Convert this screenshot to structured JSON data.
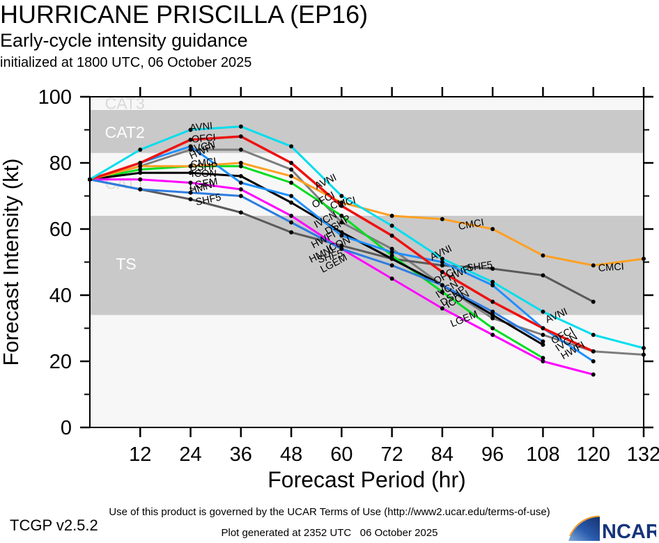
{
  "header": {
    "title": "HURRICANE PRISCILLA (EP16)",
    "subtitle": "Early-cycle intensity guidance",
    "init": "initialized at 1800 UTC, 06 October 2025"
  },
  "footer": {
    "version": "TCGP v2.5.2",
    "terms": "Use of this product is governed by the UCAR Terms of Use (http://www2.ucar.edu/terms-of-use)",
    "generated": "Plot generated at 2352 UTC   06 October 2025",
    "logo_text": "NCAR",
    "logo_navy": "#16357c",
    "logo_orange": "#f59a23"
  },
  "chart_data": {
    "type": "line",
    "title": "HURRICANE PRISCILLA (EP16)",
    "xlabel": "Forecast Period (hr)",
    "ylabel": "Forecast Intensity (kt)",
    "xlim": [
      0,
      132
    ],
    "ylim": [
      0,
      100
    ],
    "x_major_ticks": [
      12,
      24,
      36,
      48,
      60,
      72,
      84,
      96,
      108,
      120,
      132
    ],
    "y_major_ticks": [
      0,
      20,
      40,
      60,
      80,
      100
    ],
    "y_minor_ticks": [
      10,
      30,
      50,
      70,
      90
    ],
    "plot_bg": "#f7f7f7",
    "band_gray": "#c9c9c9",
    "x": [
      0,
      12,
      24,
      36,
      48,
      60,
      72,
      84,
      96,
      108,
      120,
      132
    ],
    "bands": [
      {
        "label": "TS",
        "from": 34,
        "to": 64,
        "fill": "#c9c9c9",
        "label_color": "#ffffff",
        "label_hr": 6.2,
        "label_kt": 49.5
      },
      {
        "label": "CAT1",
        "from": 64,
        "to": 83,
        "fill": "#f7f7f7",
        "label_color": "#dcdcdc",
        "label_hr": 3.6,
        "label_kt": 73.8
      },
      {
        "label": "CAT2",
        "from": 83,
        "to": 96,
        "fill": "#c9c9c9",
        "label_color": "#ffffff",
        "label_hr": 3.6,
        "label_kt": 89.3
      },
      {
        "label": "CAT3",
        "from": 96,
        "to": 113,
        "fill": "#f7f7f7",
        "label_color": "#d8d8d8",
        "label_hr": 3.6,
        "label_kt": 98.0
      }
    ],
    "series": [
      {
        "name": "IVCN",
        "color": "#7d7d7d",
        "width": 3,
        "values": [
          75,
          79,
          84,
          84,
          78,
          62,
          54,
          43,
          33,
          28,
          23,
          22
        ]
      },
      {
        "name": "SHF5",
        "color": "#5a5a5a",
        "width": 3,
        "values": [
          75,
          72,
          69,
          65,
          59,
          55,
          51,
          49,
          48,
          46,
          38,
          null
        ]
      },
      {
        "name": "DSHP",
        "color": "#00dd22",
        "width": 3,
        "values": [
          75,
          78,
          79,
          79,
          74,
          64,
          52,
          41,
          30,
          21,
          null,
          null
        ]
      },
      {
        "name": "ICON",
        "color": "#000000",
        "width": 3,
        "values": [
          75,
          77,
          77,
          76,
          68,
          59,
          51,
          43,
          34,
          25,
          null,
          null
        ]
      },
      {
        "name": "LGEM",
        "color": "#ff00ff",
        "width": 3,
        "values": [
          75,
          75,
          74,
          72,
          64,
          54,
          45,
          36,
          28,
          20,
          16,
          null
        ]
      },
      {
        "name": "HMNI",
        "color": "#2e7ce0",
        "width": 3,
        "values": [
          75,
          72,
          71,
          70,
          62,
          54,
          49,
          43,
          35,
          26,
          null,
          null
        ]
      },
      {
        "name": "HWFI",
        "color": "#1e90ff",
        "width": 3,
        "values": [
          75,
          80,
          85,
          74,
          70,
          58,
          53,
          50,
          43,
          30,
          20,
          null
        ]
      },
      {
        "name": "CMCI",
        "color": "#ffa022",
        "width": 3,
        "values": [
          75,
          79,
          79,
          80,
          76,
          68,
          64,
          63,
          60,
          52,
          49,
          51
        ]
      },
      {
        "name": "OFCI",
        "color": "#ee1111",
        "width": 3.5,
        "values": [
          75,
          80,
          87,
          88,
          80,
          67,
          58,
          47,
          38,
          30,
          23,
          null
        ]
      },
      {
        "name": "AVNI",
        "color": "#00ddee",
        "width": 3,
        "values": [
          75,
          84,
          90,
          91,
          85,
          70,
          61,
          51,
          44,
          35,
          28,
          24
        ]
      }
    ],
    "annotations": [
      {
        "text": "AVNI",
        "hr": 26.6,
        "kt": 91.0,
        "rot": -6
      },
      {
        "text": "OFCI",
        "hr": 27.2,
        "kt": 87.5,
        "rot": -5
      },
      {
        "text": "IVCN",
        "hr": 27.2,
        "kt": 85.0,
        "rot": -12
      },
      {
        "text": "HWFI",
        "hr": 27.0,
        "kt": 83.7,
        "rot": -24
      },
      {
        "text": "CMCI",
        "hr": 27.2,
        "kt": 80.1,
        "rot": -8
      },
      {
        "text": "DSHP",
        "hr": 27.2,
        "kt": 78.9,
        "rot": -3
      },
      {
        "text": "ICON",
        "hr": 27.2,
        "kt": 76.8,
        "rot": 0
      },
      {
        "text": "LGEM",
        "hr": 27.2,
        "kt": 73.8,
        "rot": -10
      },
      {
        "text": "HMNI",
        "hr": 27.0,
        "kt": 72.7,
        "rot": -18
      },
      {
        "text": "SHF5",
        "hr": 28.4,
        "kt": 69.0,
        "rot": -12
      },
      {
        "text": "AVNI",
        "hr": 56.5,
        "kt": 74.5,
        "rot": -26
      },
      {
        "text": "OFCI",
        "hr": 56.0,
        "kt": 69.0,
        "rot": -28
      },
      {
        "text": "CMCI",
        "hr": 60.5,
        "kt": 68.0,
        "rot": -14
      },
      {
        "text": "IVCN",
        "hr": 56.5,
        "kt": 63.0,
        "rot": -28
      },
      {
        "text": "DSHP",
        "hr": 59.5,
        "kt": 61.5,
        "rot": -32
      },
      {
        "text": "HWFI",
        "hr": 56.0,
        "kt": 57.0,
        "rot": -28
      },
      {
        "text": "ICON",
        "hr": 59.5,
        "kt": 55.5,
        "rot": -24
      },
      {
        "text": "HMNI",
        "hr": 55.5,
        "kt": 52.5,
        "rot": -26
      },
      {
        "text": "SHF5",
        "hr": 57.5,
        "kt": 51.8,
        "rot": -16
      },
      {
        "text": "LGEM",
        "hr": 58.5,
        "kt": 49.8,
        "rot": -28
      },
      {
        "text": "CMCI",
        "hr": 91.0,
        "kt": 61.5,
        "rot": -10
      },
      {
        "text": "AVNI",
        "hr": 84.0,
        "kt": 53.0,
        "rot": -26
      },
      {
        "text": "SHF5",
        "hr": 93.0,
        "kt": 48.8,
        "rot": -8
      },
      {
        "text": "HWFI",
        "hr": 88.5,
        "kt": 47.0,
        "rot": -26
      },
      {
        "text": "OFCI",
        "hr": 85.0,
        "kt": 46.0,
        "rot": -30
      },
      {
        "text": "IVCN",
        "hr": 85.5,
        "kt": 42.0,
        "rot": -32
      },
      {
        "text": "DSHP",
        "hr": 87.0,
        "kt": 40.0,
        "rot": -34
      },
      {
        "text": "ICON",
        "hr": 88.0,
        "kt": 39.0,
        "rot": -30
      },
      {
        "text": "LGEM",
        "hr": 89.5,
        "kt": 33.0,
        "rot": -22
      },
      {
        "text": "CMCI",
        "hr": 124.3,
        "kt": 48.5,
        "rot": -4
      },
      {
        "text": "AVNI",
        "hr": 111.5,
        "kt": 34.0,
        "rot": -24
      },
      {
        "text": "OFCI",
        "hr": 113.0,
        "kt": 28.0,
        "rot": -30
      },
      {
        "text": "IVCN",
        "hr": 114.0,
        "kt": 26.0,
        "rot": -34
      },
      {
        "text": "HWFI",
        "hr": 115.5,
        "kt": 23.5,
        "rot": -30
      }
    ]
  }
}
